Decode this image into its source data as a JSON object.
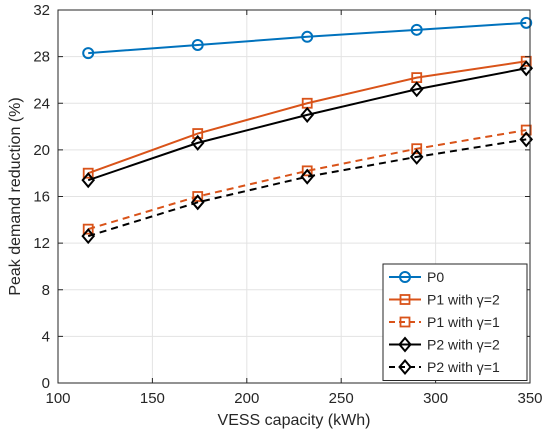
{
  "chart_data": {
    "type": "line",
    "xlabel": "VESS capacity (kWh)",
    "ylabel": "Peak demand reduction (%)",
    "xlim": [
      100,
      350
    ],
    "ylim": [
      0,
      32
    ],
    "xticks": [
      "100",
      "150",
      "200",
      "250",
      "300",
      "350"
    ],
    "yticks": [
      "0",
      "4",
      "8",
      "12",
      "16",
      "20",
      "24",
      "28",
      "32"
    ],
    "grid": true,
    "legend_position": "bottom-right",
    "x": [
      116,
      174,
      232,
      290,
      348
    ],
    "series": [
      {
        "name": "P0",
        "color": "#0072BD",
        "dash": false,
        "marker": "circle",
        "values": [
          28.3,
          29.0,
          29.7,
          30.3,
          30.9
        ]
      },
      {
        "name": "P1 with γ=2",
        "color": "#D95319",
        "dash": false,
        "marker": "square",
        "values": [
          18.0,
          21.4,
          24.0,
          26.2,
          27.6
        ]
      },
      {
        "name": "P1 with γ=1",
        "color": "#D95319",
        "dash": true,
        "marker": "square",
        "values": [
          13.2,
          16.0,
          18.2,
          20.1,
          21.7
        ]
      },
      {
        "name": "P2 with γ=2",
        "color": "#000000",
        "dash": false,
        "marker": "diamond",
        "values": [
          17.4,
          20.6,
          23.0,
          25.2,
          27.0
        ]
      },
      {
        "name": "P2 with γ=1",
        "color": "#000000",
        "dash": true,
        "marker": "diamond",
        "values": [
          12.6,
          15.5,
          17.7,
          19.4,
          20.9
        ]
      }
    ]
  }
}
